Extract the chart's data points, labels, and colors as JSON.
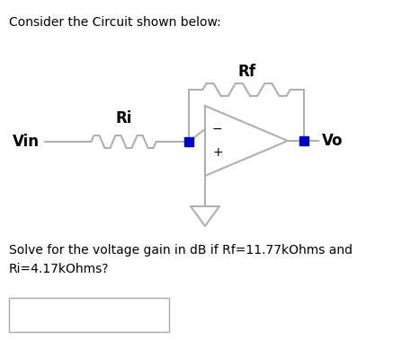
{
  "title": "Consider the Circuit shown below:",
  "question_text": "Solve for the voltage gain in dB if Rf=11.77kOhms and\nRi=4.17kOhms?",
  "title_fontsize": 10,
  "question_fontsize": 10,
  "background_color": "#ffffff",
  "text_color": "#000000",
  "wire_color": "#b0b0b0",
  "node_color": "#0000cc",
  "label_Rf": "Rf",
  "label_Ri": "Ri",
  "label_Vin": "Vin",
  "label_Vo": "Vo",
  "label_minus": "−",
  "label_plus": "+",
  "figwidth": 4.37,
  "figheight": 3.98,
  "dpi": 100
}
